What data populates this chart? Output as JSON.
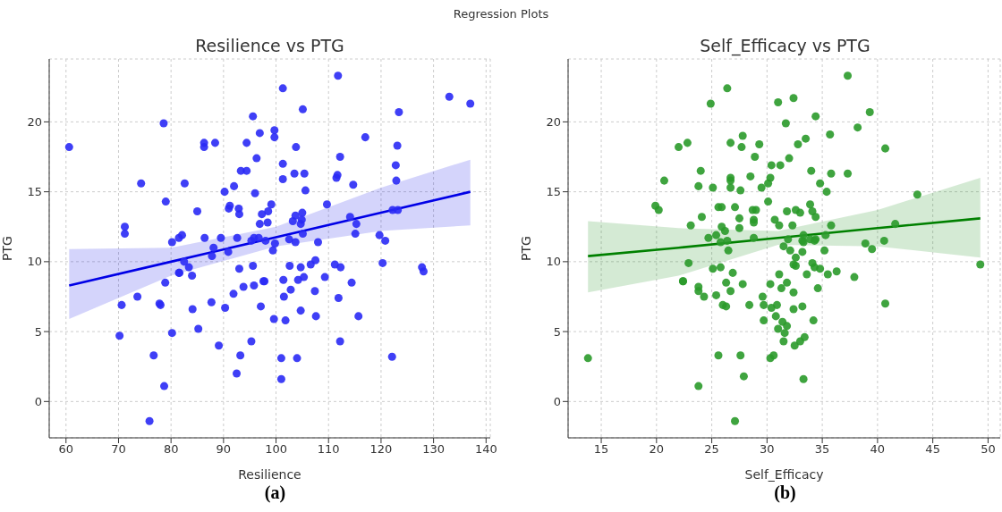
{
  "chart_data": [
    {
      "type": "scatter",
      "title": "Resilience vs PTG",
      "xlabel": "Resilience",
      "ylabel": "PTG",
      "annotations": [
        "Regression Plots",
        "(a)"
      ],
      "xlim": [
        56.8,
        140.8
      ],
      "ylim": [
        -2.6,
        24.5
      ],
      "xticks": [
        60,
        70,
        80,
        90,
        100,
        110,
        120,
        130,
        140
      ],
      "yticks": [
        0,
        5,
        10,
        15,
        20
      ],
      "grid": true,
      "series": [
        {
          "marker": "circle",
          "color": "#2a2af5",
          "x": [
            60.6,
            70.2,
            70.6,
            71.2,
            71.2,
            74.3,
            73.6,
            76.7,
            75.9,
            77.8,
            78,
            78.7,
            78.6,
            78.9,
            79,
            80.2,
            80.2,
            81.5,
            81.6,
            81.5,
            82.1,
            82.6,
            82.5,
            83.4,
            84.1,
            84,
            85,
            85.2,
            86.4,
            86.3,
            86.3,
            87.7,
            87.8,
            88.1,
            88.4,
            89.5,
            89.1,
            90.2,
            90.3,
            90.9,
            91,
            91.2,
            92,
            91.9,
            92.5,
            92.6,
            92.9,
            93,
            93.3,
            93,
            93.2,
            93.8,
            94.4,
            94.4,
            95.3,
            95.3,
            95.6,
            95.6,
            95.8,
            96,
            95.8,
            96.3,
            96.7,
            96.9,
            96.9,
            97.1,
            97.3,
            97.6,
            97.8,
            98,
            98.5,
            98.4,
            99.1,
            99.4,
            99.7,
            99.7,
            99.6,
            99.8,
            101,
            101,
            101.4,
            101.3,
            101.3,
            101.3,
            101.5,
            101.8,
            102.5,
            102.6,
            102.8,
            103.2,
            103.5,
            103.7,
            103.8,
            103.7,
            104,
            104.2,
            104.7,
            104.7,
            104.7,
            104.9,
            105,
            105.1,
            105.1,
            105.3,
            105.4,
            105.6,
            106.6,
            107.4,
            107.5,
            107.6,
            108,
            109.3,
            109.7,
            111.2,
            111.5,
            111.8,
            111.7,
            111.9,
            112.2,
            112.2,
            112.3,
            114.1,
            114.4,
            114.7,
            115.3,
            115.1,
            115.7,
            117,
            119.7,
            120.3,
            120.8,
            122.1,
            122.2,
            122.8,
            122.9,
            123.1,
            123.2,
            123.4,
            127.8,
            128.1,
            133,
            137
          ],
          "values": [
            18.2,
            4.7,
            6.9,
            12.5,
            12,
            15.6,
            7.5,
            3.3,
            -1.4,
            7,
            6.9,
            1.1,
            19.9,
            8.5,
            14.3,
            4.9,
            11.4,
            9.2,
            9.2,
            11.7,
            11.9,
            15.6,
            10,
            9.6,
            6.6,
            9,
            13.6,
            5.2,
            11.7,
            18.2,
            18.5,
            7.1,
            10.4,
            11,
            18.5,
            11.7,
            4,
            15,
            6.7,
            10.7,
            13.8,
            14,
            15.4,
            7.7,
            2,
            11.7,
            13.8,
            13.4,
            16.5,
            9.5,
            3.3,
            8.2,
            16.5,
            18.5,
            11.5,
            4.3,
            20.4,
            9.7,
            11.7,
            14.9,
            8.3,
            17.4,
            11.7,
            12.7,
            19.2,
            6.8,
            13.4,
            8.6,
            8.6,
            11.5,
            13.6,
            12.8,
            14.1,
            10.8,
            19.4,
            18.9,
            5.9,
            11.3,
            3.1,
            1.6,
            8.7,
            17,
            22.4,
            15.9,
            7.5,
            5.8,
            11.6,
            9.7,
            8,
            12.9,
            16.3,
            11.4,
            18.2,
            13.3,
            3.1,
            8.7,
            6.5,
            9.6,
            12.7,
            13,
            13.5,
            12,
            20.9,
            8.9,
            16.3,
            15.1,
            9.8,
            7.9,
            10.1,
            6.1,
            11.4,
            8.9,
            14.1,
            9.8,
            16,
            23.3,
            16.2,
            7.4,
            4.3,
            17.5,
            9.6,
            13.2,
            8.5,
            15.5,
            12.7,
            12,
            6.1,
            18.9,
            11.9,
            9.9,
            11.5,
            3.2,
            13.7,
            16.9,
            15.8,
            18.3,
            13.7,
            20.7,
            9.6,
            9.3,
            21.8,
            21.3
          ]
        },
        {
          "type": "line",
          "color": "#0000e6",
          "x": [
            60.6,
            80,
            100,
            120,
            137
          ],
          "values": [
            8.3,
            10.0,
            11.75,
            13.5,
            15.0
          ],
          "lower": [
            5.9,
            9.0,
            11.1,
            12.2,
            12.6
          ],
          "upper": [
            10.9,
            11.0,
            12.5,
            15.3,
            17.3
          ]
        }
      ]
    },
    {
      "type": "scatter",
      "title": "Self_Efficacy vs PTG",
      "xlabel": "Self_Efficacy",
      "ylabel": "PTG",
      "annotations": [
        "(b)"
      ],
      "xlim": [
        12.0,
        51.1
      ],
      "ylim": [
        -2.6,
        24.5
      ],
      "xticks": [
        15,
        20,
        25,
        30,
        35,
        40,
        45,
        50
      ],
      "yticks": [
        0,
        5,
        10,
        15,
        20
      ],
      "grid": true,
      "series": [
        {
          "marker": "circle",
          "color": "#2a9a2a",
          "x": [
            13.8,
            19.9,
            20.2,
            22.8,
            22.0,
            20.7,
            24.0,
            23.8,
            25.1,
            24.9,
            26.4,
            26.7,
            27.7,
            27.8,
            26.7,
            26.7,
            26.7,
            27.6,
            25.6,
            25.9,
            27.1,
            24.1,
            27.5,
            27.5,
            23.1,
            25.9,
            26.2,
            25.4,
            24.7,
            25.8,
            26.4,
            26.5,
            22.9,
            25.1,
            25.8,
            26.9,
            22.4,
            22.4,
            26.3,
            27.8,
            23.8,
            23.8,
            24.3,
            25.4,
            26.7,
            26.0,
            26.3,
            25.6,
            27.6,
            27.9,
            23.8,
            27.1,
            37.3,
            32.4,
            31.0,
            39.3,
            34.4,
            31.7,
            38.2,
            35.7,
            33.5,
            29.3,
            32.8,
            40.7,
            28.9,
            32.0,
            30.4,
            31.2,
            34.0,
            37.3,
            35.8,
            28.5,
            30.3,
            34.8,
            30.1,
            29.5,
            35.4,
            43.6,
            30.1,
            33.9,
            29.0,
            28.7,
            31.8,
            32.6,
            33.0,
            34.1,
            34.4,
            30.7,
            28.8,
            28.8,
            31.1,
            32.3,
            35.8,
            41.6,
            35.3,
            31.9,
            33.3,
            33.2,
            33.3,
            33.9,
            34.4,
            34.3,
            28.8,
            38.9,
            40.6,
            31.5,
            39.5,
            32.1,
            35.2,
            33.2,
            32.6,
            34.1,
            32.4,
            32.6,
            49.3,
            34.3,
            34.8,
            36.3,
            35.5,
            33.6,
            37.9,
            31.1,
            30.3,
            31.8,
            31.3,
            32.4,
            34.6,
            29.6,
            29.7,
            30.4,
            30.9,
            28.4,
            32.4,
            33.2,
            40.7,
            29.7,
            30.8,
            34.2,
            31.0,
            31.4,
            31.8,
            31.6,
            31.5,
            32.5,
            33.0,
            33.4,
            30.3,
            30.6,
            33.3
          ],
          "values": [
            3.1,
            14.0,
            13.7,
            18.5,
            18.2,
            15.8,
            16.5,
            15.4,
            15.3,
            21.3,
            22.4,
            18.5,
            18.2,
            19.0,
            16.0,
            15.8,
            15.3,
            15.1,
            13.9,
            13.9,
            13.9,
            13.2,
            13.1,
            12.4,
            12.6,
            12.5,
            12.2,
            11.9,
            11.7,
            11.4,
            11.5,
            10.8,
            9.9,
            9.5,
            9.6,
            9.2,
            8.6,
            8.6,
            8.5,
            8.4,
            8.2,
            7.9,
            7.5,
            7.6,
            7.9,
            6.9,
            6.8,
            3.3,
            3.3,
            1.8,
            1.1,
            -1.4,
            23.3,
            21.7,
            21.4,
            20.7,
            20.4,
            19.9,
            19.6,
            19.1,
            18.8,
            18.4,
            18.4,
            18.1,
            17.5,
            17.4,
            16.9,
            16.9,
            16.5,
            16.3,
            16.3,
            16.1,
            16.0,
            15.6,
            15.6,
            15.3,
            15.0,
            14.8,
            14.3,
            14.1,
            13.7,
            13.7,
            13.6,
            13.7,
            13.5,
            13.6,
            13.2,
            13.0,
            13.0,
            12.8,
            12.6,
            12.6,
            12.6,
            12.7,
            11.9,
            11.6,
            11.9,
            11.5,
            11.4,
            11.6,
            11.6,
            11.5,
            11.7,
            11.3,
            11.5,
            11.1,
            10.9,
            10.8,
            10.8,
            10.7,
            10.3,
            9.9,
            9.8,
            9.7,
            9.8,
            9.6,
            9.5,
            9.3,
            9.1,
            9.1,
            8.9,
            9.1,
            8.4,
            8.5,
            8.1,
            7.8,
            8.1,
            7.5,
            6.9,
            6.7,
            6.9,
            6.9,
            6.6,
            6.8,
            7.0,
            5.8,
            6.1,
            5.8,
            5.2,
            5.7,
            5.4,
            4.9,
            4.3,
            4.0,
            4.3,
            4.6,
            3.1,
            3.3,
            1.6
          ]
        },
        {
          "type": "line",
          "color": "#008000",
          "x": [
            13.8,
            22,
            31,
            40,
            49.3
          ],
          "values": [
            10.4,
            11.0,
            11.7,
            12.4,
            13.1
          ],
          "lower": [
            7.8,
            9.0,
            11.2,
            11.1,
            10.3
          ],
          "upper": [
            12.9,
            12.4,
            12.2,
            13.7,
            16.0
          ]
        }
      ]
    }
  ]
}
